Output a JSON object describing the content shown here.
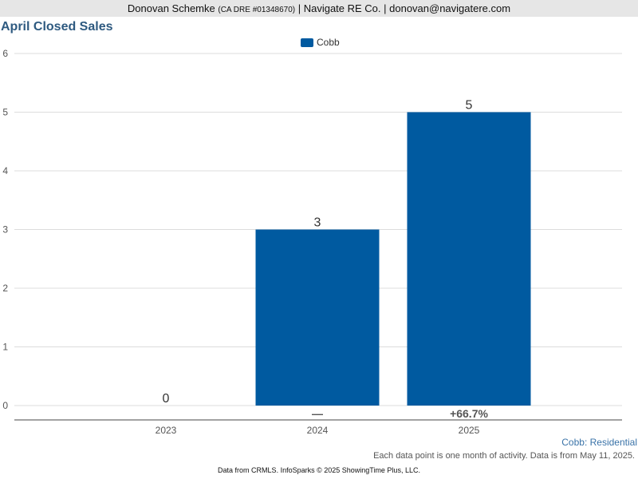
{
  "banner": {
    "name": "Donovan Schemke",
    "license": "(CA DRE #01348670)",
    "rest": "| Navigate RE Co. | donovan@navigatere.com"
  },
  "chart_data": {
    "type": "bar",
    "title": "April Closed Sales",
    "categories": [
      "2023",
      "2024",
      "2025"
    ],
    "series": [
      {
        "name": "Cobb",
        "values": [
          0,
          3,
          5
        ],
        "color": "#005aa0"
      }
    ],
    "data_labels": [
      "0",
      "3",
      "5"
    ],
    "change_labels": [
      "",
      "—",
      "+66.7%"
    ],
    "ylim": [
      0,
      6
    ],
    "yticks": [
      "0",
      "1",
      "2",
      "3",
      "4",
      "5",
      "6"
    ],
    "grid": true,
    "legend_position": "top-center",
    "xlabel": "",
    "ylabel": ""
  },
  "footer": {
    "series_label": "Cobb: Residential",
    "note": "Each data point is one month of activity. Data is from May 11, 2025.",
    "source": "Data from CRMLS. InfoSparks © 2025 ShowingTime Plus, LLC."
  }
}
